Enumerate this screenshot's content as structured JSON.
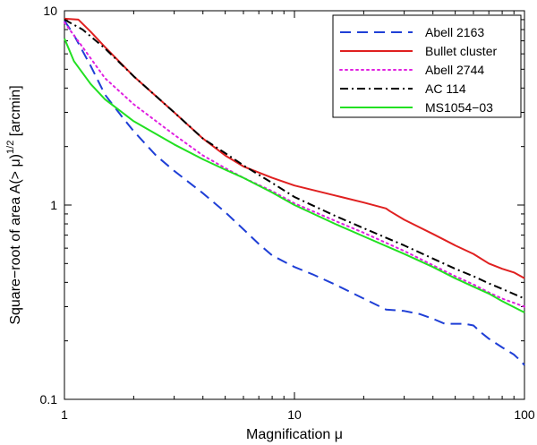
{
  "chart_data": {
    "type": "line",
    "xscale": "log",
    "yscale": "log",
    "xlabel": "Magnification μ",
    "ylabel": "Square−root of area A(> μ)",
    "ylabel_sup": "1/2",
    "ylabel_unit": " [arcmin]",
    "xlim": [
      1,
      100
    ],
    "ylim": [
      0.1,
      10
    ],
    "xticks": [
      1,
      10,
      100
    ],
    "xtick_labels": [
      "1",
      "10",
      "100"
    ],
    "yticks": [
      0.1,
      1,
      10
    ],
    "ytick_labels": [
      "0.1",
      "1",
      "10"
    ],
    "legend_position": "top-right",
    "series": [
      {
        "name": "Abell 2163",
        "color": "#1f3fd6",
        "dash": "dashed",
        "points": [
          [
            1,
            8.9
          ],
          [
            1.1,
            7.5
          ],
          [
            1.3,
            5.2
          ],
          [
            1.5,
            3.7
          ],
          [
            1.8,
            2.8
          ],
          [
            2,
            2.4
          ],
          [
            2.5,
            1.8
          ],
          [
            3,
            1.5
          ],
          [
            4,
            1.15
          ],
          [
            5,
            0.92
          ],
          [
            6,
            0.75
          ],
          [
            7,
            0.63
          ],
          [
            8,
            0.55
          ],
          [
            10,
            0.48
          ],
          [
            12,
            0.44
          ],
          [
            15,
            0.39
          ],
          [
            20,
            0.33
          ],
          [
            25,
            0.29
          ],
          [
            30,
            0.285
          ],
          [
            35,
            0.275
          ],
          [
            40,
            0.26
          ],
          [
            45,
            0.245
          ],
          [
            55,
            0.245
          ],
          [
            60,
            0.24
          ],
          [
            65,
            0.22
          ],
          [
            70,
            0.205
          ],
          [
            80,
            0.185
          ],
          [
            90,
            0.17
          ],
          [
            95,
            0.16
          ],
          [
            100,
            0.15
          ]
        ]
      },
      {
        "name": "Bullet cluster",
        "color": "#e02020",
        "dash": "solid",
        "points": [
          [
            1,
            9.1
          ],
          [
            1.15,
            9.0
          ],
          [
            1.3,
            7.8
          ],
          [
            1.5,
            6.5
          ],
          [
            2,
            4.6
          ],
          [
            3,
            3.0
          ],
          [
            4,
            2.2
          ],
          [
            5,
            1.8
          ],
          [
            6,
            1.58
          ],
          [
            8,
            1.38
          ],
          [
            10,
            1.26
          ],
          [
            15,
            1.12
          ],
          [
            20,
            1.03
          ],
          [
            25,
            0.96
          ],
          [
            26,
            0.93
          ],
          [
            30,
            0.84
          ],
          [
            40,
            0.71
          ],
          [
            50,
            0.62
          ],
          [
            60,
            0.56
          ],
          [
            70,
            0.5
          ],
          [
            80,
            0.47
          ],
          [
            90,
            0.45
          ],
          [
            100,
            0.42
          ]
        ]
      },
      {
        "name": "Abell 2744",
        "color": "#e020e0",
        "dash": "dotted",
        "points": [
          [
            1,
            8.7
          ],
          [
            1.2,
            6.5
          ],
          [
            1.5,
            4.5
          ],
          [
            2,
            3.3
          ],
          [
            3,
            2.3
          ],
          [
            4,
            1.8
          ],
          [
            5,
            1.55
          ],
          [
            6,
            1.38
          ],
          [
            8,
            1.18
          ],
          [
            10,
            1.02
          ],
          [
            15,
            0.83
          ],
          [
            20,
            0.72
          ],
          [
            30,
            0.58
          ],
          [
            40,
            0.49
          ],
          [
            50,
            0.43
          ],
          [
            60,
            0.39
          ],
          [
            70,
            0.355
          ],
          [
            80,
            0.33
          ],
          [
            100,
            0.3
          ]
        ]
      },
      {
        "name": "AC 114",
        "color": "#000000",
        "dash": "dashdot",
        "points": [
          [
            1,
            9.0
          ],
          [
            1.2,
            8.0
          ],
          [
            1.5,
            6.4
          ],
          [
            2,
            4.6
          ],
          [
            3,
            3.0
          ],
          [
            4,
            2.2
          ],
          [
            5,
            1.85
          ],
          [
            6,
            1.6
          ],
          [
            8,
            1.3
          ],
          [
            10,
            1.1
          ],
          [
            15,
            0.88
          ],
          [
            20,
            0.76
          ],
          [
            30,
            0.62
          ],
          [
            40,
            0.53
          ],
          [
            50,
            0.47
          ],
          [
            60,
            0.43
          ],
          [
            70,
            0.395
          ],
          [
            80,
            0.37
          ],
          [
            100,
            0.33
          ]
        ]
      },
      {
        "name": "MS1054−03",
        "color": "#22e022",
        "dash": "solid",
        "points": [
          [
            1,
            7.2
          ],
          [
            1.1,
            5.5
          ],
          [
            1.3,
            4.2
          ],
          [
            1.5,
            3.5
          ],
          [
            2,
            2.7
          ],
          [
            3,
            2.05
          ],
          [
            4,
            1.72
          ],
          [
            5,
            1.52
          ],
          [
            6,
            1.38
          ],
          [
            8,
            1.16
          ],
          [
            10,
            1.0
          ],
          [
            15,
            0.8
          ],
          [
            20,
            0.69
          ],
          [
            30,
            0.56
          ],
          [
            40,
            0.48
          ],
          [
            50,
            0.42
          ],
          [
            60,
            0.38
          ],
          [
            70,
            0.35
          ],
          [
            80,
            0.32
          ],
          [
            100,
            0.28
          ]
        ]
      }
    ]
  }
}
